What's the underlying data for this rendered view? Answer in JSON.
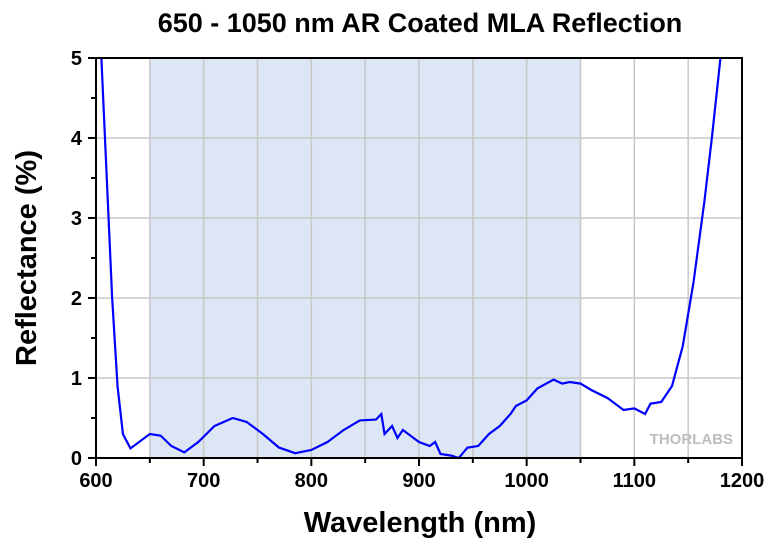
{
  "chart_data": {
    "type": "line",
    "title": "650 - 1050 nm AR Coated MLA Reflection",
    "xlabel": "Wavelength (nm)",
    "ylabel": "Reflectance (%)",
    "xlim": [
      600,
      1200
    ],
    "ylim": [
      0,
      5
    ],
    "xticks": [
      600,
      700,
      800,
      900,
      1000,
      1100,
      1200
    ],
    "yticks": [
      0,
      1,
      2,
      3,
      4,
      5
    ],
    "grid": true,
    "highlight_band": [
      650,
      1050
    ],
    "watermark": "THORLABS",
    "colors": {
      "line": "#0000ff",
      "band": "#dce6f5",
      "grid": "#c8c8c8"
    },
    "series": [
      {
        "name": "Reflectance",
        "x": [
          605,
          610,
          615,
          620,
          625,
          632,
          640,
          650,
          660,
          670,
          682,
          695,
          710,
          727,
          740,
          755,
          770,
          785,
          800,
          815,
          830,
          845,
          860,
          865,
          868,
          875,
          880,
          885,
          890,
          900,
          910,
          915,
          920,
          930,
          937,
          945,
          955,
          965,
          975,
          985,
          990,
          1000,
          1010,
          1025,
          1033,
          1040,
          1050,
          1060,
          1075,
          1090,
          1100,
          1110,
          1115,
          1125,
          1135,
          1145,
          1155,
          1165,
          1172,
          1180
        ],
        "y": [
          5,
          3.5,
          2.0,
          0.9,
          0.3,
          0.12,
          0.2,
          0.3,
          0.28,
          0.15,
          0.07,
          0.2,
          0.4,
          0.5,
          0.45,
          0.3,
          0.13,
          0.06,
          0.1,
          0.2,
          0.35,
          0.47,
          0.48,
          0.55,
          0.3,
          0.4,
          0.25,
          0.35,
          0.3,
          0.2,
          0.15,
          0.2,
          0.05,
          0.03,
          0.0,
          0.13,
          0.15,
          0.3,
          0.4,
          0.55,
          0.65,
          0.72,
          0.87,
          0.98,
          0.93,
          0.95,
          0.93,
          0.85,
          0.75,
          0.6,
          0.62,
          0.55,
          0.68,
          0.7,
          0.9,
          1.4,
          2.2,
          3.2,
          4.0,
          5
        ]
      }
    ]
  }
}
